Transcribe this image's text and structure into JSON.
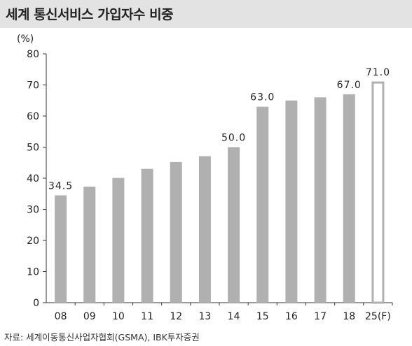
{
  "header": {
    "title": "세계 통신서비스 가입자수 비중"
  },
  "footer": {
    "source": "자료: 세계이동통신사업자협회(GSMA), IBK투자증권"
  },
  "chart_data": {
    "type": "bar",
    "title": "세계 통신서비스 가입자수 비중",
    "ylabel": "(%)",
    "xlabel": "",
    "ylim": [
      0,
      80
    ],
    "yticks": [
      0,
      10,
      20,
      30,
      40,
      50,
      60,
      70,
      80
    ],
    "grid": false,
    "categories": [
      "08",
      "09",
      "10",
      "11",
      "12",
      "13",
      "14",
      "15",
      "16",
      "17",
      "18",
      "25(F)"
    ],
    "values": [
      34.5,
      37.3,
      40.1,
      43.0,
      45.2,
      47.1,
      50.0,
      63.0,
      65.0,
      66.0,
      67.0,
      71.0
    ],
    "data_labels": {
      "0": "34.5",
      "6": "50.0",
      "7": "63.0",
      "10": "67.0",
      "11": "71.0"
    },
    "forecast_index": 11,
    "colors": {
      "bar": "#b0b0b0",
      "forecast_stroke": "#b0b0b0",
      "axis": "#333333"
    }
  }
}
